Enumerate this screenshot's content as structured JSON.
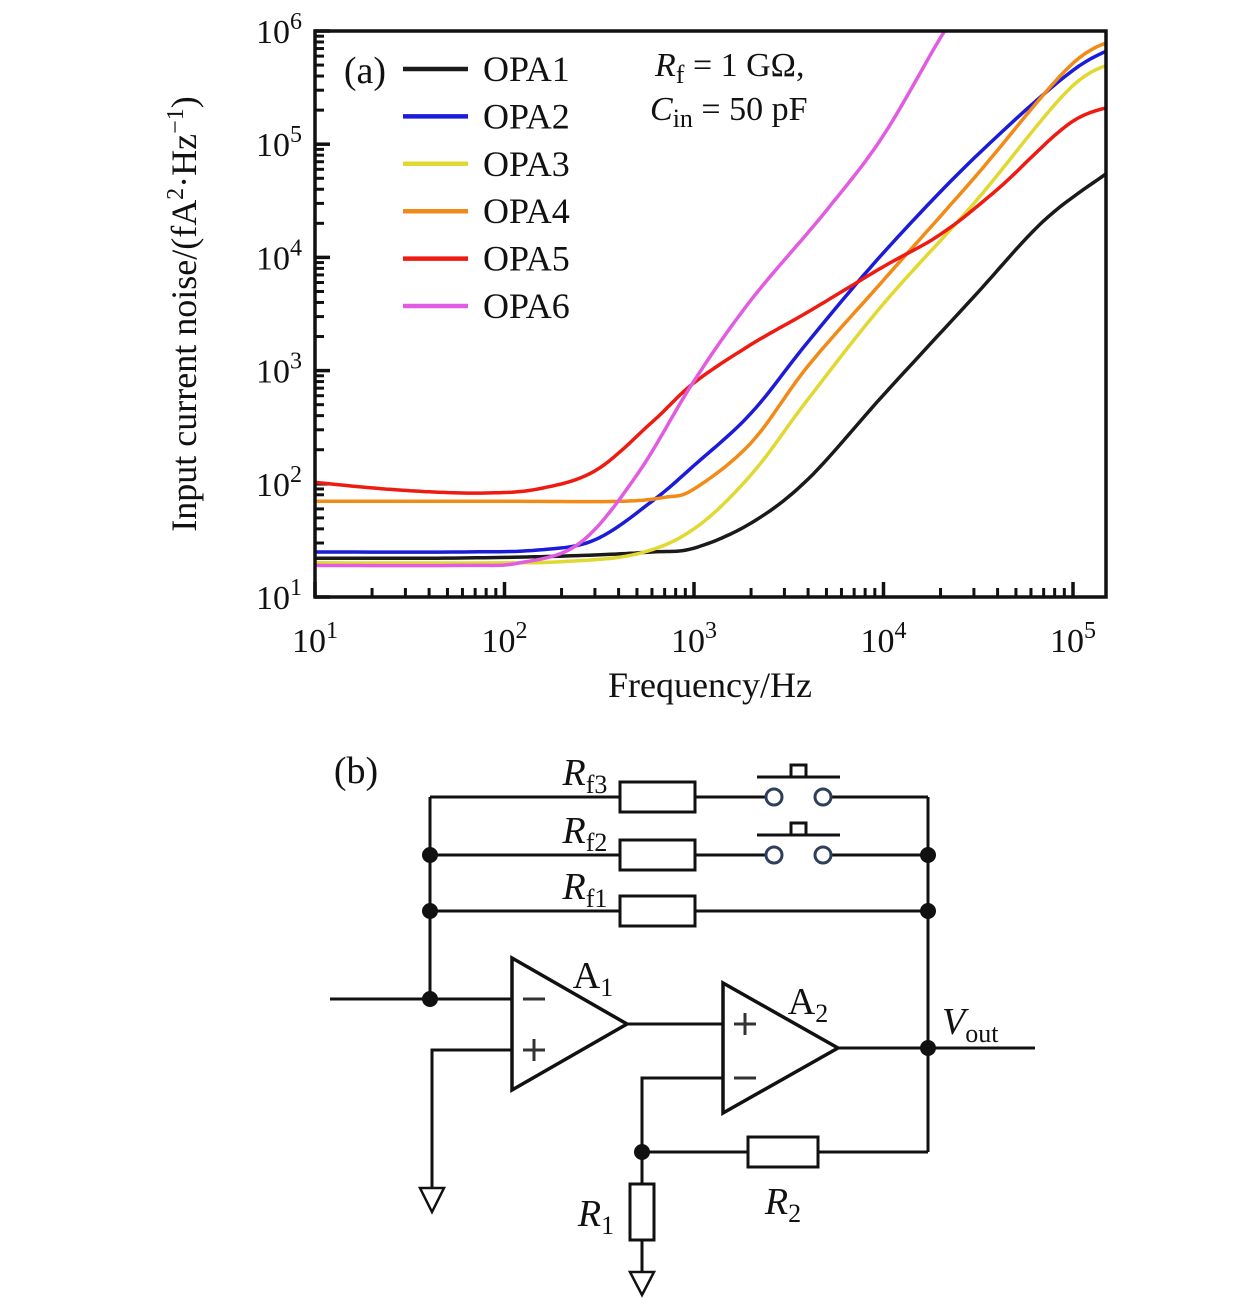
{
  "panel_a": {
    "label": "(a)",
    "x_title": "Frequency/Hz",
    "y_title_parts": {
      "p1": "Input current noise/(fA",
      "sup1": "2",
      "p2": "·Hz",
      "sup2": "−1",
      "p3": ")"
    },
    "annotation": {
      "l1_var": "R",
      "l1_sub": "f",
      "l1_rest": " = 1 GΩ,",
      "l2_var": "C",
      "l2_sub": "in",
      "l2_rest": " = 50 pF"
    },
    "chart_data": {
      "type": "line",
      "title": "",
      "xlabel": "Frequency/Hz",
      "ylabel": "Input current noise/(fA^2·Hz^-1)",
      "x_scale": "log",
      "y_scale": "log",
      "xlim": [
        10,
        150000
      ],
      "ylim": [
        10,
        1000000
      ],
      "grid": false,
      "legend_position": "upper-left-inside",
      "x_tick_exponents": [
        1,
        2,
        3,
        4,
        5
      ],
      "y_tick_exponents": [
        1,
        2,
        3,
        4,
        5,
        6
      ],
      "tick_base": "10",
      "series": [
        {
          "name": "OPA1",
          "color": "#1a1a1a",
          "points": [
            [
              10,
              22
            ],
            [
              40,
              22
            ],
            [
              120,
              22.5
            ],
            [
              300,
              23.5
            ],
            [
              600,
              25
            ],
            [
              1000,
              27
            ],
            [
              2000,
              45
            ],
            [
              4000,
              110
            ],
            [
              10000,
              610
            ],
            [
              30000,
              4500
            ],
            [
              70000,
              21000
            ],
            [
              150000,
              55000
            ],
            [
              200000,
              75000
            ]
          ]
        },
        {
          "name": "OPA2",
          "color": "#1b1bd9",
          "points": [
            [
              10,
              25
            ],
            [
              60,
              25
            ],
            [
              150,
              26
            ],
            [
              300,
              32
            ],
            [
              600,
              70
            ],
            [
              1000,
              145
            ],
            [
              2000,
              420
            ],
            [
              4000,
              1800
            ],
            [
              10000,
              11000
            ],
            [
              30000,
              75000
            ],
            [
              100000,
              450000
            ],
            [
              200000,
              800000
            ]
          ]
        },
        {
          "name": "OPA3",
          "color": "#e2d832",
          "points": [
            [
              10,
              20
            ],
            [
              80,
              20
            ],
            [
              200,
              20.5
            ],
            [
              500,
              24
            ],
            [
              1000,
              40
            ],
            [
              2000,
              120
            ],
            [
              4000,
              560
            ],
            [
              10000,
              3900
            ],
            [
              30000,
              30000
            ],
            [
              100000,
              330000
            ],
            [
              200000,
              560000
            ]
          ]
        },
        {
          "name": "OPA4",
          "color": "#f18a16",
          "points": [
            [
              10,
              70
            ],
            [
              100,
              70
            ],
            [
              400,
              70
            ],
            [
              700,
              76
            ],
            [
              1000,
              90
            ],
            [
              2000,
              230
            ],
            [
              4000,
              1100
            ],
            [
              10000,
              6300
            ],
            [
              30000,
              50000
            ],
            [
              100000,
              520000
            ],
            [
              200000,
              900000
            ]
          ]
        },
        {
          "name": "OPA5",
          "color": "#ed1b12",
          "points": [
            [
              10,
              103
            ],
            [
              20,
              92
            ],
            [
              40,
              85
            ],
            [
              80,
              83
            ],
            [
              150,
              90
            ],
            [
              300,
              130
            ],
            [
              600,
              350
            ],
            [
              1000,
              780
            ],
            [
              2000,
              1700
            ],
            [
              4000,
              3300
            ],
            [
              10000,
              8300
            ],
            [
              20000,
              16000
            ],
            [
              40000,
              40000
            ],
            [
              100000,
              160000
            ],
            [
              200000,
              230000
            ]
          ]
        },
        {
          "name": "OPA6",
          "color": "#e15ce1",
          "points": [
            [
              10,
              19
            ],
            [
              60,
              19
            ],
            [
              120,
              20
            ],
            [
              250,
              30
            ],
            [
              500,
              120
            ],
            [
              1000,
              810
            ],
            [
              2000,
              4200
            ],
            [
              5000,
              26000
            ],
            [
              10000,
              120000
            ],
            [
              21000,
              1000000
            ],
            [
              30000,
              2200000
            ]
          ]
        }
      ],
      "annotations": [
        "R_f = 1 GΩ,",
        "C_in = 50 pF"
      ]
    }
  },
  "panel_b": {
    "label": "(b)",
    "components": {
      "rf3": {
        "base": "R",
        "sub": "f3"
      },
      "rf2": {
        "base": "R",
        "sub": "f2"
      },
      "rf1": {
        "base": "R",
        "sub": "f1"
      },
      "a1": {
        "base": "A",
        "sub": "1"
      },
      "a2": {
        "base": "A",
        "sub": "2"
      },
      "r1": {
        "base": "R",
        "sub": "1"
      },
      "r2": {
        "base": "R",
        "sub": "2"
      },
      "vout": {
        "base": "V",
        "sub": "out"
      }
    }
  }
}
